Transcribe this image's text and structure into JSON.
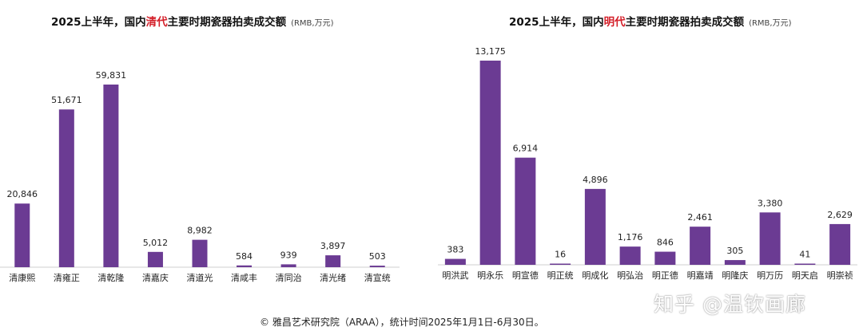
{
  "colors": {
    "bar": "#6b3b93",
    "highlight": "#d4202a"
  },
  "chart_data": [
    {
      "type": "bar",
      "title_prefix": "2025上半年，国内",
      "title_highlight": "清代",
      "title_suffix": "主要时期瓷器拍卖成交额",
      "unit": "(RMB,万元)",
      "categories": [
        "清康熙",
        "清雍正",
        "清乾隆",
        "清嘉庆",
        "清道光",
        "清咸丰",
        "清同治",
        "清光绪",
        "清宣统"
      ],
      "values": [
        20846,
        51671,
        59831,
        5012,
        8982,
        584,
        939,
        3897,
        503
      ],
      "value_labels": [
        "20,846",
        "51,671",
        "59,831",
        "5,012",
        "8,982",
        "584",
        "939",
        "3,897",
        "503"
      ],
      "grid": false,
      "legend": "none"
    },
    {
      "type": "bar",
      "title_prefix": "2025上半年，国内",
      "title_highlight": "明代",
      "title_suffix": "主要时期瓷器拍卖成交额",
      "unit": "(RMB,万元)",
      "categories": [
        "明洪武",
        "明永乐",
        "明宣德",
        "明正统",
        "明成化",
        "明弘治",
        "明正德",
        "明嘉靖",
        "明隆庆",
        "明万历",
        "明天启",
        "明崇祯"
      ],
      "values": [
        383,
        13175,
        6914,
        16,
        4896,
        1176,
        846,
        2461,
        305,
        3380,
        41,
        2629
      ],
      "value_labels": [
        "383",
        "13,175",
        "6,914",
        "16",
        "4,896",
        "1,176",
        "846",
        "2,461",
        "305",
        "3,380",
        "41",
        "2,629"
      ],
      "grid": false,
      "legend": "none"
    }
  ],
  "footer": "© 雅昌艺术研究院（ARAA），统计时间2025年1月1日-6月30日。",
  "watermark": "知乎 @温钦画廊"
}
